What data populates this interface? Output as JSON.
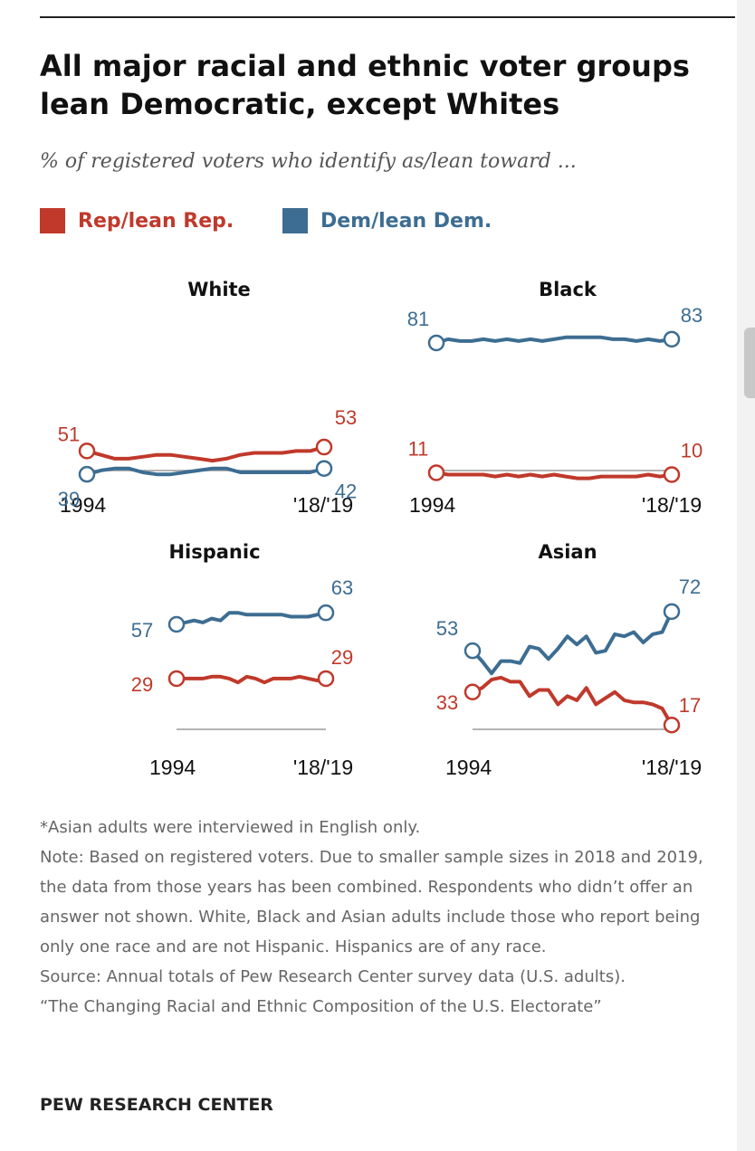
{
  "title": "All major racial and ethnic voter groups lean Democratic, except Whites",
  "subtitle": "% of registered voters who identify as/lean toward ...",
  "colors": {
    "rep": "#c0392b",
    "dem": "#3d6d92",
    "axis": "#b5b5b5",
    "text": "#111111",
    "note": "#666666"
  },
  "legend": {
    "rep": "Rep/lean Rep.",
    "dem": "Dem/lean Dem."
  },
  "chart_data": [
    {
      "type": "line",
      "title": "White",
      "x_start_label": "1994",
      "x_end_label": "'18/'19",
      "ylim": [
        0,
        100
      ],
      "series": [
        {
          "name": "Rep/lean Rep.",
          "color": "rep",
          "start": 51,
          "end": 53,
          "values": [
            51,
            49,
            47,
            47,
            48,
            49,
            49,
            48,
            47,
            46,
            47,
            49,
            50,
            50,
            50,
            51,
            51,
            53
          ]
        },
        {
          "name": "Dem/lean Dem.",
          "color": "dem",
          "start": 39,
          "end": 42,
          "values": [
            39,
            41,
            42,
            42,
            40,
            39,
            39,
            40,
            41,
            42,
            42,
            40,
            40,
            40,
            40,
            40,
            40,
            42
          ]
        }
      ]
    },
    {
      "type": "line",
      "title": "Black",
      "x_start_label": "1994",
      "x_end_label": "'18/'19",
      "ylim": [
        0,
        100
      ],
      "series": [
        {
          "name": "Dem/lean Dem.",
          "color": "dem",
          "start": 81,
          "end": 83,
          "values": [
            81,
            83,
            82,
            82,
            83,
            82,
            83,
            82,
            83,
            82,
            83,
            84,
            84,
            84,
            84,
            83,
            83,
            82,
            83,
            82,
            83
          ]
        },
        {
          "name": "Rep/lean Rep.",
          "color": "rep",
          "start": 11,
          "end": 10,
          "values": [
            11,
            10,
            10,
            10,
            10,
            9,
            10,
            9,
            10,
            9,
            10,
            9,
            8,
            8,
            9,
            9,
            9,
            9,
            10,
            9,
            10
          ]
        }
      ]
    },
    {
      "type": "line",
      "title": "Hispanic",
      "x_start_label": "1994",
      "x_end_label": "'18/'19",
      "ylim": [
        0,
        100
      ],
      "series": [
        {
          "name": "Dem/lean Dem.",
          "color": "dem",
          "start": 57,
          "end": 63,
          "values": [
            57,
            58,
            59,
            58,
            60,
            59,
            63,
            63,
            62,
            62,
            62,
            62,
            62,
            61,
            61,
            61,
            62,
            63
          ]
        },
        {
          "name": "Rep/lean Rep.",
          "color": "rep",
          "start": 29,
          "end": 29,
          "values": [
            29,
            29,
            29,
            29,
            30,
            30,
            29,
            27,
            30,
            29,
            27,
            29,
            29,
            29,
            30,
            29,
            28,
            29
          ]
        }
      ]
    },
    {
      "type": "line",
      "title": "Asian",
      "x_start_label": "1994",
      "x_end_label": "'18/'19",
      "ylim": [
        0,
        100
      ],
      "series": [
        {
          "name": "Dem/lean Dem.",
          "color": "dem",
          "start": 53,
          "end": 72,
          "values": [
            53,
            48,
            42,
            48,
            48,
            47,
            55,
            54,
            49,
            54,
            60,
            56,
            60,
            52,
            53,
            61,
            60,
            62,
            57,
            61,
            62,
            72
          ]
        },
        {
          "name": "Rep/lean Rep.",
          "color": "rep",
          "start": 33,
          "end": 17,
          "values": [
            33,
            35,
            39,
            40,
            38,
            38,
            31,
            34,
            34,
            27,
            31,
            29,
            35,
            27,
            30,
            33,
            29,
            28,
            28,
            27,
            25,
            17
          ]
        }
      ]
    }
  ],
  "notes": {
    "asterisk": "*Asian adults were interviewed in English only.",
    "note": "Note: Based on registered voters. Due to smaller sample sizes in 2018 and 2019, the data from those years has been combined. Respondents who didn’t offer an answer not shown. White, Black and Asian adults include those who report being only one race and are not Hispanic. Hispanics are of any race.",
    "source": "Source: Annual totals of Pew Research Center survey data (U.S. adults).",
    "report": "“The Changing Racial and Ethnic Composition of the U.S. Electorate”"
  },
  "org": "PEW RESEARCH CENTER"
}
